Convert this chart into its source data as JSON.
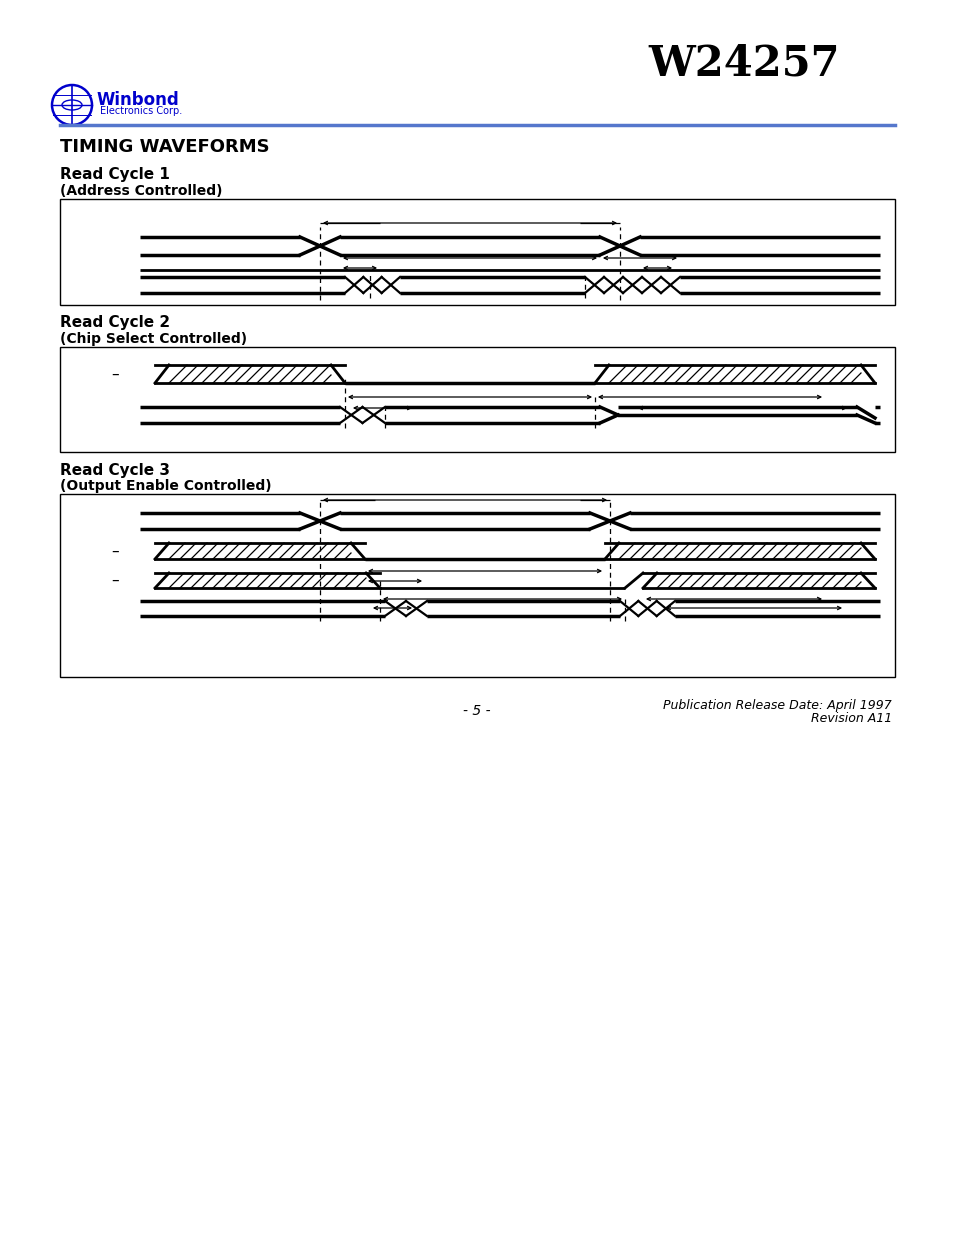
{
  "title": "W24257",
  "header_title": "TIMING WAVEFORMS",
  "section1_title": "Read Cycle 1",
  "section1_subtitle": "(Address Controlled)",
  "section2_title": "Read Cycle 2",
  "section2_subtitle": "(Chip Select Controlled)",
  "section3_title": "Read Cycle 3",
  "section3_subtitle": "(Output Enable Controlled)",
  "footer_left": "- 5 -",
  "footer_right_line1": "Publication Release Date: April 1997",
  "footer_right_line2": "Revision A11",
  "bg_color": "#ffffff"
}
